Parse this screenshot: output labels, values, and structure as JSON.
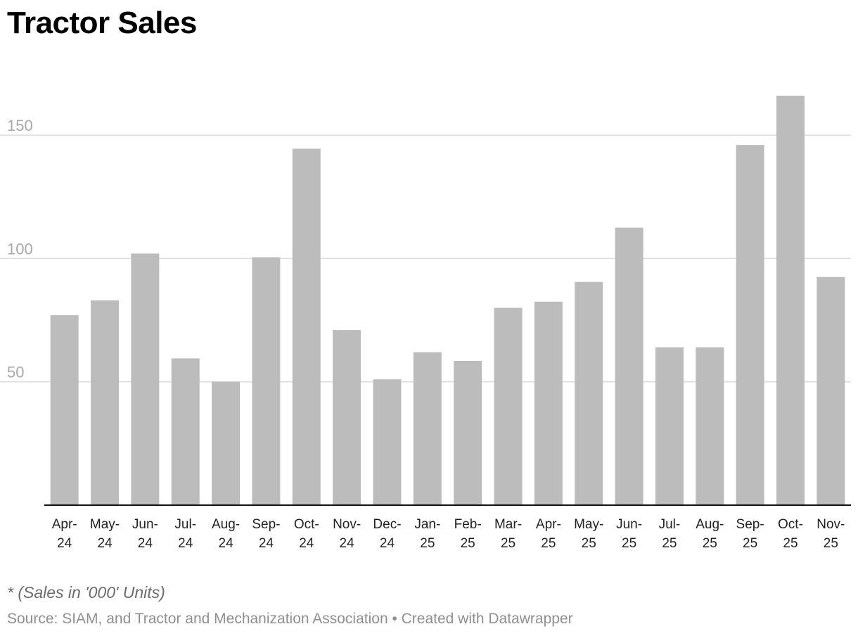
{
  "chart_data": {
    "type": "bar",
    "title": "Tractor Sales",
    "categories": [
      [
        "Apr-",
        "24"
      ],
      [
        "May-",
        "24"
      ],
      [
        "Jun-",
        "24"
      ],
      [
        "Jul-",
        "24"
      ],
      [
        "Aug-",
        "24"
      ],
      [
        "Sep-",
        "24"
      ],
      [
        "Oct-",
        "24"
      ],
      [
        "Nov-",
        "24"
      ],
      [
        "Dec-",
        "24"
      ],
      [
        "Jan-",
        "25"
      ],
      [
        "Feb-",
        "25"
      ],
      [
        "Mar-",
        "25"
      ],
      [
        "Apr-",
        "25"
      ],
      [
        "May-",
        "25"
      ],
      [
        "Jun-",
        "25"
      ],
      [
        "Jul-",
        "25"
      ],
      [
        "Aug-",
        "25"
      ],
      [
        "Sep-",
        "25"
      ],
      [
        "Oct-",
        "25"
      ],
      [
        "Nov-",
        "25"
      ]
    ],
    "values": [
      77,
      83,
      102,
      59.5,
      50,
      100.5,
      144.5,
      71,
      51,
      62,
      58.5,
      80,
      82.5,
      90.5,
      112.5,
      64,
      64,
      146,
      166,
      92.5
    ],
    "ylim": [
      0,
      170
    ],
    "yticks": [
      50,
      100,
      150
    ],
    "xlabel": "",
    "ylabel": "",
    "grid": true,
    "bar_color": "#bcbcbc",
    "note": "* (Sales in '000' Units)",
    "source": "Source: SIAM, and Tractor and Mechanization Association • Created with Datawrapper"
  }
}
